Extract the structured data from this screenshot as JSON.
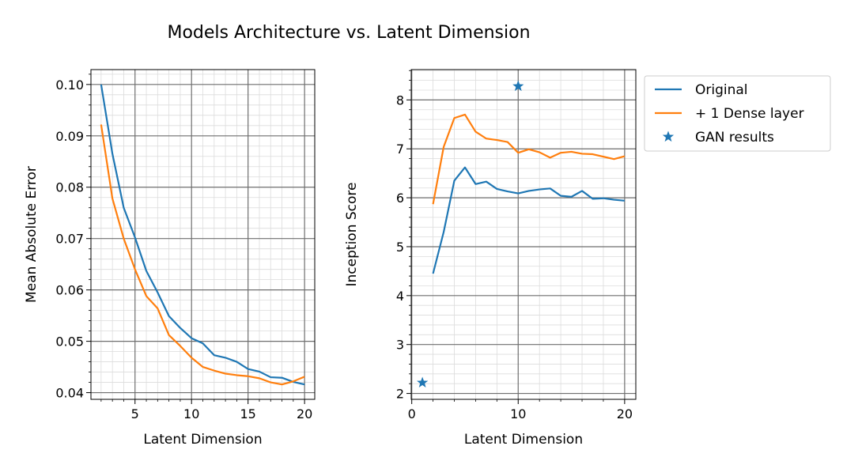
{
  "figure": {
    "title": "Models Architecture vs. Latent Dimension"
  },
  "colors": {
    "original": "#1f77b4",
    "dense": "#ff7f0e",
    "gan": "#1f77b4",
    "grid_major": "#6e6e6e",
    "grid_minor": "#dcdcdc"
  },
  "chart_data": [
    {
      "type": "line",
      "xlabel": "Latent Dimension",
      "ylabel": "Mean Absolute Error",
      "xlim": [
        1.1,
        20.9
      ],
      "ylim": [
        0.0387,
        0.1029
      ],
      "grid": true,
      "x_ticks": [
        5,
        10,
        15,
        20
      ],
      "x_tick_labels": [
        "5",
        "10",
        "15",
        "20"
      ],
      "y_ticks": [
        0.04,
        0.05,
        0.06,
        0.07,
        0.08,
        0.09,
        0.1
      ],
      "y_tick_labels": [
        "0.04",
        "0.05",
        "0.06",
        "0.07",
        "0.08",
        "0.09",
        "0.10"
      ],
      "x_minor_ticks": [
        2,
        3,
        4,
        6,
        7,
        8,
        9,
        11,
        12,
        13,
        14,
        16,
        17,
        18,
        19
      ],
      "y_minor_ticks": [
        0.042,
        0.044,
        0.046,
        0.048,
        0.052,
        0.054,
        0.056,
        0.058,
        0.062,
        0.064,
        0.066,
        0.068,
        0.072,
        0.074,
        0.076,
        0.078,
        0.082,
        0.084,
        0.086,
        0.088,
        0.092,
        0.094,
        0.096,
        0.098,
        0.102
      ],
      "series": [
        {
          "key": "original",
          "name": "Original",
          "x": [
            2,
            3,
            4,
            5,
            6,
            7,
            8,
            9,
            10,
            11,
            12,
            13,
            14,
            15,
            16,
            17,
            18,
            19,
            20
          ],
          "y": [
            0.1,
            0.0865,
            0.076,
            0.0702,
            0.0637,
            0.0595,
            0.0549,
            0.0526,
            0.0506,
            0.0496,
            0.0473,
            0.0468,
            0.046,
            0.0446,
            0.0441,
            0.043,
            0.0429,
            0.0421,
            0.0416
          ]
        },
        {
          "key": "dense",
          "name": "+ 1 Dense layer",
          "x": [
            2,
            3,
            4,
            5,
            6,
            7,
            8,
            9,
            10,
            11,
            12,
            13,
            14,
            15,
            16,
            17,
            18,
            19,
            20
          ],
          "y": [
            0.0922,
            0.0778,
            0.07,
            0.064,
            0.0588,
            0.0564,
            0.0512,
            0.0491,
            0.0468,
            0.045,
            0.0443,
            0.0437,
            0.0434,
            0.0432,
            0.0428,
            0.042,
            0.0416,
            0.0422,
            0.0431
          ]
        }
      ]
    },
    {
      "type": "line",
      "xlabel": "Latent Dimension",
      "ylabel": "Inception Score",
      "xlim": [
        -0.05,
        21.05
      ],
      "ylim": [
        1.88,
        8.62
      ],
      "grid": true,
      "x_ticks": [
        0,
        10,
        20
      ],
      "x_tick_labels": [
        "0",
        "10",
        "20"
      ],
      "y_ticks": [
        2,
        3,
        4,
        5,
        6,
        7,
        8
      ],
      "y_tick_labels": [
        "2",
        "3",
        "4",
        "5",
        "6",
        "7",
        "8"
      ],
      "x_minor_ticks": [
        2,
        4,
        6,
        8,
        12,
        14,
        16,
        18
      ],
      "y_minor_ticks": [
        2.2,
        2.4,
        2.6,
        2.8,
        3.2,
        3.4,
        3.6,
        3.8,
        4.2,
        4.4,
        4.6,
        4.8,
        5.2,
        5.4,
        5.6,
        5.8,
        6.2,
        6.4,
        6.6,
        6.8,
        7.2,
        7.4,
        7.6,
        7.8,
        8.2,
        8.4,
        8.6
      ],
      "series": [
        {
          "key": "original",
          "name": "Original",
          "x": [
            2,
            3,
            4,
            5,
            6,
            7,
            8,
            9,
            10,
            11,
            12,
            13,
            14,
            15,
            16,
            17,
            18,
            19,
            20
          ],
          "y": [
            4.45,
            5.3,
            6.35,
            6.62,
            6.28,
            6.33,
            6.18,
            6.13,
            6.09,
            6.14,
            6.17,
            6.19,
            6.04,
            6.02,
            6.14,
            5.98,
            5.99,
            5.96,
            5.94
          ]
        },
        {
          "key": "dense",
          "name": "+ 1 Dense layer",
          "x": [
            2,
            3,
            4,
            5,
            6,
            7,
            8,
            9,
            10,
            11,
            12,
            13,
            14,
            15,
            16,
            17,
            18,
            19,
            20
          ],
          "y": [
            5.87,
            7.04,
            7.63,
            7.7,
            7.35,
            7.21,
            7.18,
            7.14,
            6.92,
            6.99,
            6.93,
            6.82,
            6.92,
            6.94,
            6.9,
            6.89,
            6.84,
            6.79,
            6.85
          ]
        }
      ],
      "scatter": [
        {
          "key": "gan",
          "name": "GAN results",
          "marker": "star",
          "points": [
            [
              1,
              2.22
            ],
            [
              10,
              8.28
            ]
          ]
        }
      ]
    }
  ],
  "legend": {
    "placement": "outside-right-top",
    "entries": [
      {
        "label": "Original",
        "marker": "line",
        "color_key": "original"
      },
      {
        "label": "+ 1 Dense layer",
        "marker": "line",
        "color_key": "dense"
      },
      {
        "label": "GAN results",
        "marker": "star",
        "color_key": "gan"
      }
    ]
  }
}
